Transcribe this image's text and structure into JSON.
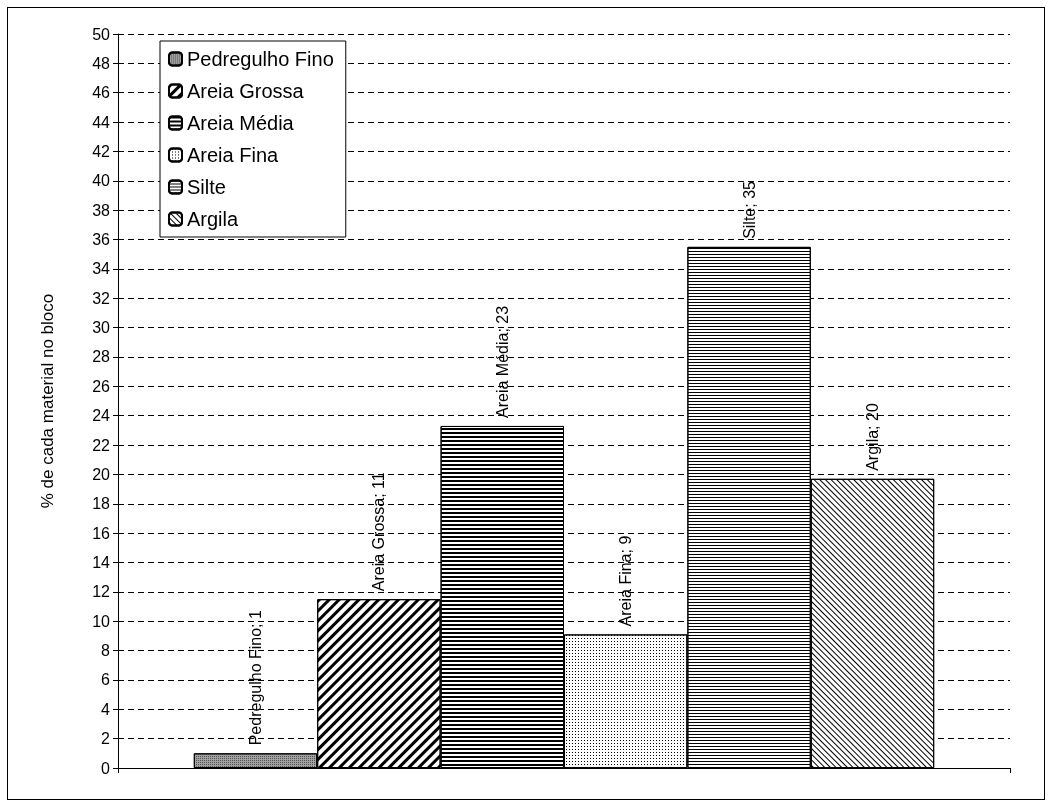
{
  "chart_data": {
    "type": "bar",
    "ylabel": "% de cada material no bloco",
    "categories": [
      null
    ],
    "series": [
      {
        "name": "Pedregulho Fino",
        "color": "#a0a0a0",
        "values": [
          1
        ],
        "value_labels": [
          "Pedregulho Fino; 1"
        ]
      },
      {
        "name": "Areia Grossa",
        "color": "#ffffff",
        "values": [
          11.5
        ],
        "value_labels": [
          "Areia Grossa; 11"
        ]
      },
      {
        "name": "Areia Média",
        "color": "#ffffff",
        "values": [
          23.3
        ],
        "value_labels": [
          "Areia Média; 23"
        ]
      },
      {
        "name": "Areia Fina",
        "color": "#ffffff",
        "values": [
          9.1
        ],
        "value_labels": [
          "Areia Fina; 9"
        ]
      },
      {
        "name": "Silte",
        "color": "#ffffff",
        "values": [
          35.5
        ],
        "value_labels": [
          "Silte; 35"
        ]
      },
      {
        "name": "Argila",
        "color": "#ffffff",
        "values": [
          19.7
        ],
        "value_labels": [
          "Argila; 20"
        ]
      }
    ],
    "ylim": [
      0,
      50
    ],
    "yticks": [
      0,
      2,
      4,
      6,
      8,
      10,
      12,
      14,
      16,
      18,
      20,
      22,
      24,
      26,
      28,
      30,
      32,
      34,
      36,
      38,
      40,
      42,
      44,
      46,
      48,
      50
    ],
    "grid": "y",
    "legend": "top left"
  }
}
